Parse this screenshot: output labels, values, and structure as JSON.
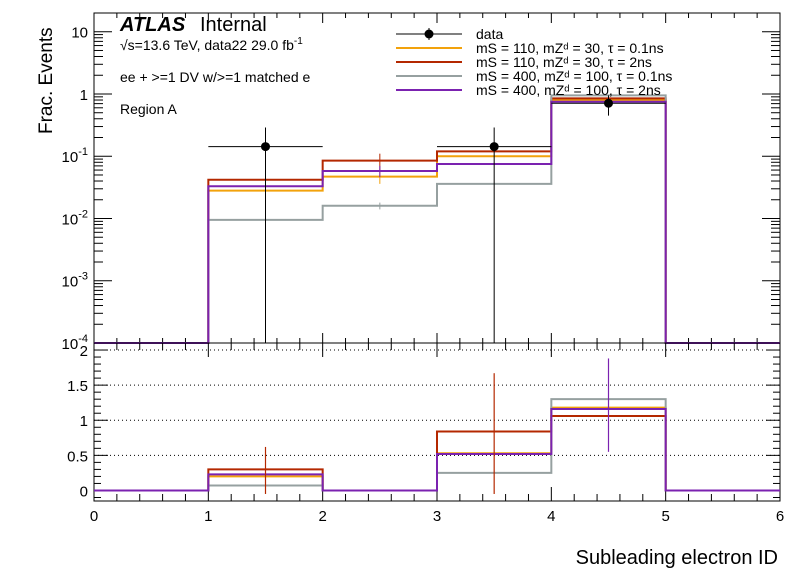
{
  "header": {
    "atlas": "ATLAS",
    "internal": "Internal",
    "energy_prefix": "√s=13.6 TeV, data22 29.0 fb",
    "energy_sup": "-1",
    "selection": "ee + >=1 DV w/>=1 matched e",
    "region": "Region A"
  },
  "legend": [
    {
      "label": "data",
      "color": "#000000",
      "style": "marker"
    },
    {
      "label": "mS = 110, mZᵈ = 30, τ = 0.1ns",
      "color": "#f2a20c",
      "style": "line"
    },
    {
      "label": "mS = 110, mZᵈ = 30, τ = 2ns",
      "color": "#b42800",
      "style": "line"
    },
    {
      "label": "mS = 400, mZᵈ = 100, τ = 0.1ns",
      "color": "#96a0a0",
      "style": "line"
    },
    {
      "label": "mS = 400, mZᵈ = 100, τ = 2ns",
      "color": "#7b22b0",
      "style": "line"
    }
  ],
  "chart_data": [
    {
      "type": "line",
      "panel": "top",
      "ylabel": "Frac. Events",
      "yscale": "log",
      "ylim": [
        0.0001,
        20
      ],
      "xlim": [
        0,
        6
      ],
      "bin_edges": [
        0,
        1,
        2,
        3,
        4,
        5,
        6
      ],
      "yticks": [
        {
          "value": 10,
          "base": "10",
          "exp": ""
        },
        {
          "value": 1,
          "base": "1",
          "exp": ""
        },
        {
          "value": 0.1,
          "base": "10",
          "exp": "-1"
        },
        {
          "value": 0.01,
          "base": "10",
          "exp": "-2"
        },
        {
          "value": 0.001,
          "base": "10",
          "exp": "-3"
        },
        {
          "value": 0.0001,
          "base": "10",
          "exp": "-4"
        }
      ],
      "series": [
        {
          "name": "mS = 110, mZᵈ = 30, τ = 0.1ns",
          "color": "#f2a20c",
          "values": [
            0,
            0.028,
            0.047,
            0.1,
            0.8,
            0
          ],
          "errors": [
            {
              "bin": 2,
              "value": 0.047,
              "lo": 0.036,
              "hi": 0.06
            }
          ]
        },
        {
          "name": "mS = 110, mZᵈ = 30, τ = 2ns",
          "color": "#b42800",
          "values": [
            0,
            0.042,
            0.085,
            0.12,
            0.85,
            0
          ],
          "errors": [
            {
              "bin": 2,
              "value": 0.085,
              "lo": 0.06,
              "hi": 0.11
            }
          ]
        },
        {
          "name": "mS = 400, mZᵈ = 100, τ = 0.1ns",
          "color": "#96a0a0",
          "values": [
            0,
            0.0095,
            0.016,
            0.036,
            0.95,
            0
          ],
          "errors": [
            {
              "bin": 2,
              "value": 0.016,
              "lo": 0.014,
              "hi": 0.018
            }
          ]
        },
        {
          "name": "mS = 400, mZᵈ = 100, τ = 2ns",
          "color": "#7b22b0",
          "values": [
            0,
            0.033,
            0.058,
            0.075,
            0.75,
            0
          ],
          "errors": [
            {
              "bin": 2,
              "value": 0.058,
              "lo": 0.046,
              "hi": 0.07
            }
          ]
        }
      ],
      "data_points": [
        {
          "x": 1.5,
          "y": 0.143,
          "xlo": 1,
          "xhi": 2,
          "ylo": 0.0001,
          "yhi": 0.29
        },
        {
          "x": 3.5,
          "y": 0.143,
          "xlo": 3,
          "xhi": 4,
          "ylo": 0.0001,
          "yhi": 0.29
        },
        {
          "x": 4.5,
          "y": 0.71,
          "xlo": 4,
          "xhi": 5,
          "ylo": 0.45,
          "yhi": 0.95
        }
      ]
    },
    {
      "type": "line",
      "panel": "ratio",
      "xlabel": "Subleading electron ID",
      "ylim": [
        -0.15,
        2.1
      ],
      "xlim": [
        0,
        6
      ],
      "bin_edges": [
        0,
        1,
        2,
        3,
        4,
        5,
        6
      ],
      "yticks": [
        "0",
        "0.5",
        "1",
        "1.5",
        "2"
      ],
      "xticks": [
        "0",
        "1",
        "2",
        "3",
        "4",
        "5",
        "6"
      ],
      "grid_y": [
        0.5,
        1,
        1.5,
        2
      ],
      "series": [
        {
          "name": "mS = 110, mZᵈ = 30, τ = 0.1ns",
          "color": "#f2a20c",
          "values": [
            0,
            0.2,
            0,
            0.53,
            1.18,
            0
          ]
        },
        {
          "name": "mS = 110, mZᵈ = 30, τ = 2ns",
          "color": "#b42800",
          "values": [
            0,
            0.3,
            0,
            0.84,
            1.06,
            0
          ]
        },
        {
          "name": "mS = 400, mZᵈ = 100, τ = 0.1ns",
          "color": "#96a0a0",
          "values": [
            0,
            0.07,
            0,
            0.25,
            1.3,
            0
          ]
        },
        {
          "name": "mS = 400, mZᵈ = 100, τ = 2ns",
          "color": "#7b22b0",
          "values": [
            0,
            0.23,
            0,
            0.52,
            1.16,
            0
          ]
        }
      ],
      "error_bars": [
        {
          "x": 1.5,
          "lo": -0.05,
          "hi": 0.62,
          "color": "#b42800"
        },
        {
          "x": 3.5,
          "lo": -0.05,
          "hi": 1.67,
          "color": "#b42800"
        },
        {
          "x": 4.5,
          "lo": 0.55,
          "hi": 1.88,
          "color": "#7b22b0"
        }
      ]
    }
  ]
}
